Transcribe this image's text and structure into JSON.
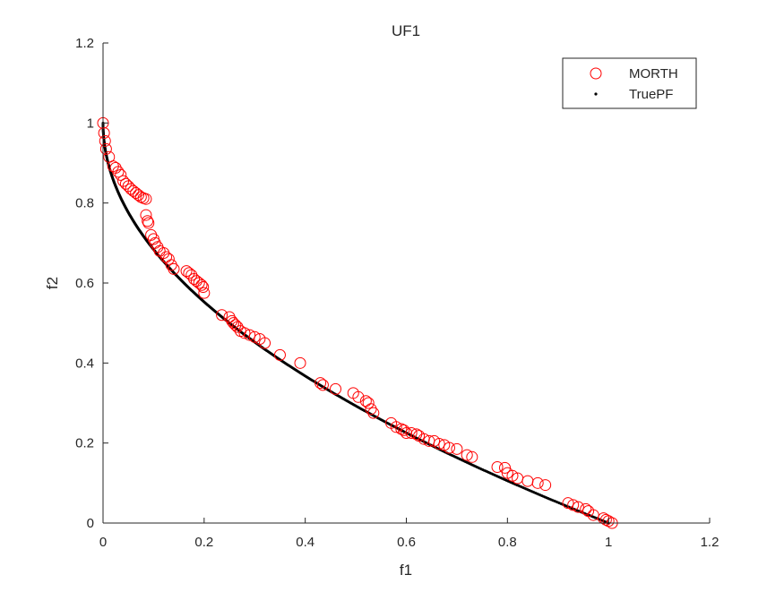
{
  "chart_data": {
    "type": "scatter",
    "title": "UF1",
    "xlabel": "f1",
    "ylabel": "f2",
    "xlim": [
      0,
      1.2
    ],
    "ylim": [
      0,
      1.2
    ],
    "xticks": [
      "0",
      "0.2",
      "0.4",
      "0.6",
      "0.8",
      "1",
      "1.2"
    ],
    "yticks": [
      "0",
      "0.2",
      "0.4",
      "0.6",
      "0.8",
      "1",
      "1.2"
    ],
    "grid": false,
    "legend_position": "top-right",
    "series": [
      {
        "name": "MORTH",
        "marker": "open-circle",
        "color": "#ff0000",
        "x": [
          0.0,
          0.002,
          0.004,
          0.006,
          0.012,
          0.02,
          0.025,
          0.03,
          0.035,
          0.04,
          0.045,
          0.05,
          0.055,
          0.06,
          0.065,
          0.07,
          0.075,
          0.08,
          0.085,
          0.085,
          0.088,
          0.09,
          0.095,
          0.1,
          0.103,
          0.108,
          0.112,
          0.12,
          0.125,
          0.13,
          0.135,
          0.14,
          0.165,
          0.17,
          0.175,
          0.18,
          0.185,
          0.19,
          0.195,
          0.198,
          0.2,
          0.235,
          0.25,
          0.255,
          0.258,
          0.262,
          0.266,
          0.272,
          0.28,
          0.29,
          0.3,
          0.31,
          0.32,
          0.35,
          0.39,
          0.43,
          0.435,
          0.46,
          0.495,
          0.505,
          0.52,
          0.525,
          0.53,
          0.535,
          0.57,
          0.58,
          0.59,
          0.595,
          0.6,
          0.61,
          0.62,
          0.625,
          0.635,
          0.645,
          0.655,
          0.665,
          0.675,
          0.685,
          0.7,
          0.72,
          0.73,
          0.78,
          0.795,
          0.8,
          0.81,
          0.82,
          0.84,
          0.86,
          0.875,
          0.92,
          0.93,
          0.94,
          0.955,
          0.96,
          0.97,
          0.99,
          0.995,
          1.0,
          1.007
        ],
        "y": [
          1.0,
          0.975,
          0.955,
          0.935,
          0.915,
          0.892,
          0.888,
          0.878,
          0.87,
          0.855,
          0.848,
          0.842,
          0.835,
          0.83,
          0.825,
          0.82,
          0.815,
          0.812,
          0.81,
          0.77,
          0.755,
          0.75,
          0.72,
          0.71,
          0.7,
          0.69,
          0.68,
          0.675,
          0.665,
          0.66,
          0.645,
          0.635,
          0.63,
          0.625,
          0.62,
          0.61,
          0.605,
          0.6,
          0.595,
          0.59,
          0.575,
          0.52,
          0.515,
          0.505,
          0.5,
          0.495,
          0.49,
          0.48,
          0.475,
          0.47,
          0.465,
          0.46,
          0.45,
          0.42,
          0.4,
          0.35,
          0.345,
          0.335,
          0.325,
          0.315,
          0.305,
          0.3,
          0.285,
          0.275,
          0.25,
          0.24,
          0.235,
          0.232,
          0.225,
          0.225,
          0.222,
          0.218,
          0.21,
          0.205,
          0.205,
          0.198,
          0.195,
          0.188,
          0.185,
          0.17,
          0.165,
          0.14,
          0.138,
          0.125,
          0.118,
          0.112,
          0.105,
          0.1,
          0.095,
          0.05,
          0.045,
          0.04,
          0.035,
          0.03,
          0.02,
          0.012,
          0.008,
          0.005,
          0.0
        ]
      },
      {
        "name": "TruePF",
        "marker": "dot",
        "color": "#000000",
        "function": "f2 = 1 - sqrt(f1)",
        "x_range": [
          0,
          1
        ]
      }
    ]
  }
}
